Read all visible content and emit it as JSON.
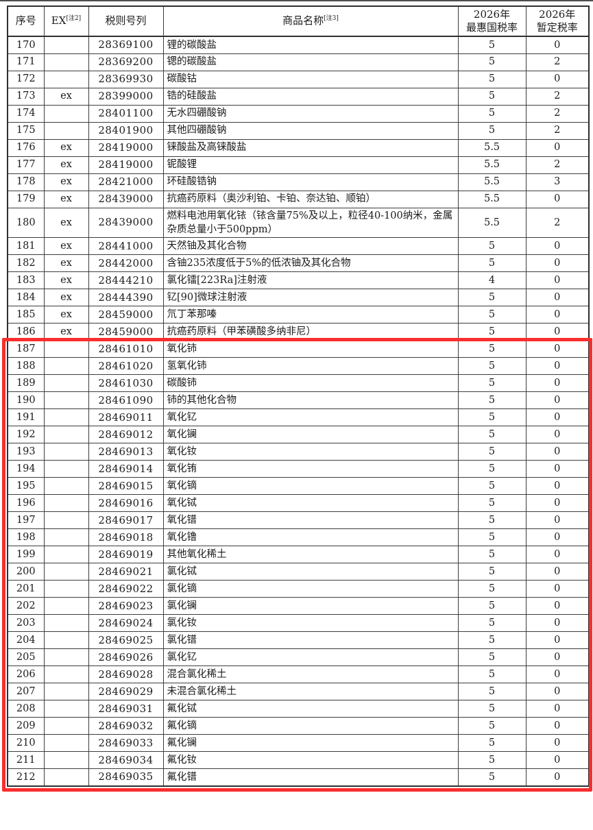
{
  "table": {
    "headers": {
      "seq": "序号",
      "ex": "EX",
      "ex_note": "[注2]",
      "code": "税则号列",
      "name": "商品名称",
      "name_note": "[注3]",
      "mfn_line1": "2026年",
      "mfn_line2": "最惠国税率",
      "temp_line1": "2026年",
      "temp_line2": "暂定税率"
    },
    "rows": [
      [
        "170",
        "",
        "28369100",
        "锂的碳酸盐",
        "5",
        "0"
      ],
      [
        "171",
        "",
        "28369200",
        "锶的碳酸盐",
        "5",
        "2"
      ],
      [
        "172",
        "",
        "28369930",
        "碳酸钴",
        "5",
        "0"
      ],
      [
        "173",
        "ex",
        "28399000",
        "锆的硅酸盐",
        "5",
        "2"
      ],
      [
        "174",
        "",
        "28401100",
        "无水四硼酸钠",
        "5",
        "2"
      ],
      [
        "175",
        "",
        "28401900",
        "其他四硼酸钠",
        "5",
        "2"
      ],
      [
        "176",
        "ex",
        "28419000",
        "铼酸盐及高铼酸盐",
        "5.5",
        "0"
      ],
      [
        "177",
        "ex",
        "28419000",
        "铌酸锂",
        "5.5",
        "2"
      ],
      [
        "178",
        "ex",
        "28421000",
        "环硅酸锆钠",
        "5.5",
        "3"
      ],
      [
        "179",
        "ex",
        "28439000",
        "抗癌药原料（奥沙利铂、卡铂、奈达铂、顺铂）",
        "5.5",
        "0"
      ],
      [
        "180",
        "ex",
        "28439000",
        "燃料电池用氧化铱（铱含量75%及以上，粒径40-100纳米，金属杂质总量小于500ppm）",
        "5.5",
        "2"
      ],
      [
        "181",
        "ex",
        "28441000",
        "天然铀及其化合物",
        "5",
        "0"
      ],
      [
        "182",
        "ex",
        "28442000",
        "含铀235浓度低于5%的低浓铀及其化合物",
        "5",
        "0"
      ],
      [
        "183",
        "ex",
        "28444210",
        "氯化镭[223Ra]注射液",
        "4",
        "0"
      ],
      [
        "184",
        "ex",
        "28444390",
        "钇[90]微球注射液",
        "5",
        "0"
      ],
      [
        "185",
        "ex",
        "28459000",
        "氘丁苯那嗪",
        "5",
        "0"
      ],
      [
        "186",
        "ex",
        "28459000",
        "抗癌药原料（甲苯磺酸多纳非尼）",
        "5",
        "0"
      ],
      [
        "187",
        "",
        "28461010",
        "氧化铈",
        "5",
        "0"
      ],
      [
        "188",
        "",
        "28461020",
        "氢氧化铈",
        "5",
        "0"
      ],
      [
        "189",
        "",
        "28461030",
        "碳酸铈",
        "5",
        "0"
      ],
      [
        "190",
        "",
        "28461090",
        "铈的其他化合物",
        "5",
        "0"
      ],
      [
        "191",
        "",
        "28469011",
        "氧化钇",
        "5",
        "0"
      ],
      [
        "192",
        "",
        "28469012",
        "氧化镧",
        "5",
        "0"
      ],
      [
        "193",
        "",
        "28469013",
        "氧化钕",
        "5",
        "0"
      ],
      [
        "194",
        "",
        "28469014",
        "氧化铕",
        "5",
        "0"
      ],
      [
        "195",
        "",
        "28469015",
        "氧化镝",
        "5",
        "0"
      ],
      [
        "196",
        "",
        "28469016",
        "氧化铽",
        "5",
        "0"
      ],
      [
        "197",
        "",
        "28469017",
        "氧化镨",
        "5",
        "0"
      ],
      [
        "198",
        "",
        "28469018",
        "氧化镥",
        "5",
        "0"
      ],
      [
        "199",
        "",
        "28469019",
        "其他氧化稀土",
        "5",
        "0"
      ],
      [
        "200",
        "",
        "28469021",
        "氯化铽",
        "5",
        "0"
      ],
      [
        "201",
        "",
        "28469022",
        "氯化镝",
        "5",
        "0"
      ],
      [
        "202",
        "",
        "28469023",
        "氯化镧",
        "5",
        "0"
      ],
      [
        "203",
        "",
        "28469024",
        "氯化钕",
        "5",
        "0"
      ],
      [
        "204",
        "",
        "28469025",
        "氯化镨",
        "5",
        "0"
      ],
      [
        "205",
        "",
        "28469026",
        "氯化钇",
        "5",
        "0"
      ],
      [
        "206",
        "",
        "28469028",
        "混合氯化稀土",
        "5",
        "0"
      ],
      [
        "207",
        "",
        "28469029",
        "未混合氯化稀土",
        "5",
        "0"
      ],
      [
        "208",
        "",
        "28469031",
        "氟化铽",
        "5",
        "0"
      ],
      [
        "209",
        "",
        "28469032",
        "氟化镝",
        "5",
        "0"
      ],
      [
        "210",
        "",
        "28469033",
        "氟化镧",
        "5",
        "0"
      ],
      [
        "211",
        "",
        "28469034",
        "氟化钕",
        "5",
        "0"
      ],
      [
        "212",
        "",
        "28469035",
        "氟化镨",
        "5",
        "0"
      ]
    ],
    "highlight": {
      "color": "#fa2e2e",
      "start_row": "187",
      "end_row": "212"
    }
  }
}
